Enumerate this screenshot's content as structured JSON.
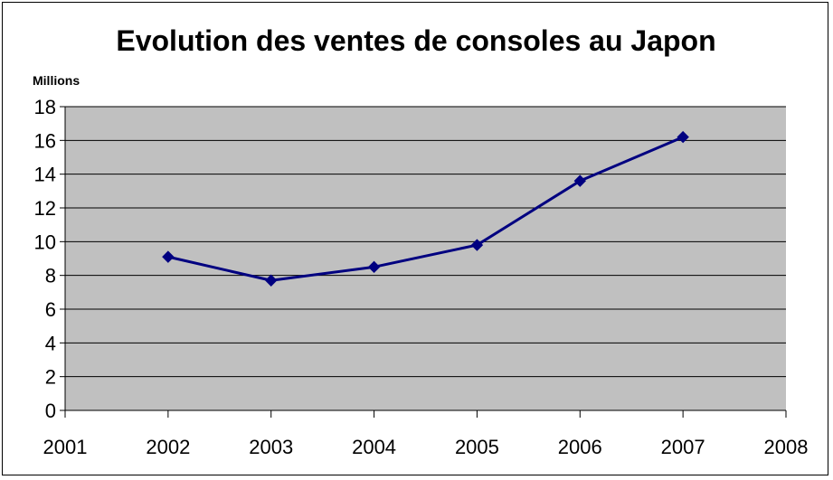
{
  "chart_data": {
    "type": "line",
    "title": "Evolution des ventes de consoles au Japon",
    "ylabel": "Millions",
    "xlabel": "",
    "x": [
      2002,
      2003,
      2004,
      2005,
      2006,
      2007
    ],
    "series": [
      {
        "values": [
          9.1,
          7.7,
          8.5,
          9.8,
          13.6,
          16.2
        ]
      }
    ],
    "xlim": [
      2001,
      2008
    ],
    "ylim": [
      0,
      18
    ],
    "x_ticks": [
      "2001",
      "2002",
      "2003",
      "2004",
      "2005",
      "2006",
      "2007",
      "2008"
    ],
    "y_ticks": [
      "0",
      "2",
      "4",
      "6",
      "8",
      "10",
      "12",
      "14",
      "16",
      "18"
    ],
    "grid": "horizontal",
    "legend": "none",
    "colors": {
      "plot_background": "#C0C0C0",
      "series_line": "#000080",
      "gridline": "#000000"
    }
  }
}
